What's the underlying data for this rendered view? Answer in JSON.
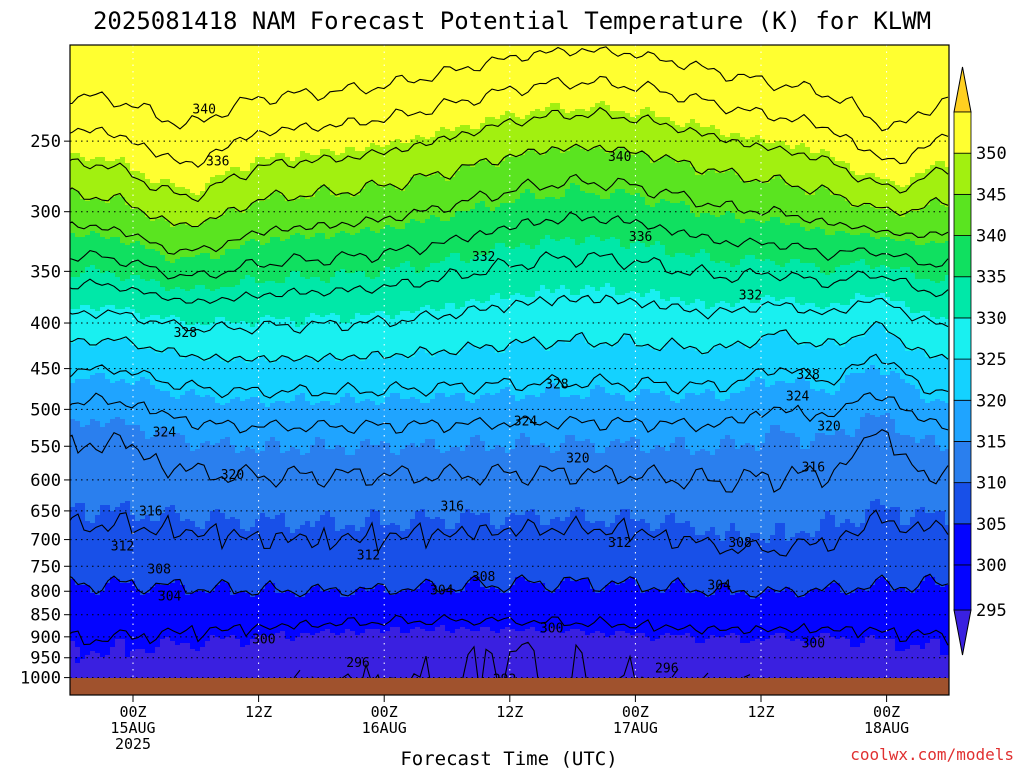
{
  "chart_data": {
    "type": "heatmap",
    "title": "2025081418 NAM Forecast Potential Temperature (K) for KLWM",
    "xlabel": "Forecast Time (UTC)",
    "ylabel": "",
    "y_scale": "log",
    "y_ticks": [
      250,
      300,
      350,
      400,
      450,
      500,
      550,
      600,
      650,
      700,
      750,
      800,
      850,
      900,
      950,
      1000
    ],
    "x_ticks": [
      {
        "hour": 0,
        "lines": [
          "00Z",
          "15AUG",
          "2025"
        ]
      },
      {
        "hour": 12,
        "lines": [
          "12Z"
        ]
      },
      {
        "hour": 24,
        "lines": [
          "00Z",
          "16AUG"
        ]
      },
      {
        "hour": 36,
        "lines": [
          "12Z"
        ]
      },
      {
        "hour": 48,
        "lines": [
          "00Z",
          "17AUG"
        ]
      },
      {
        "hour": 60,
        "lines": [
          "12Z"
        ]
      },
      {
        "hour": 72,
        "lines": [
          "00Z",
          "18AUG"
        ]
      }
    ],
    "colorbar": {
      "labels": [
        295,
        300,
        305,
        310,
        315,
        320,
        325,
        330,
        335,
        340,
        345,
        350
      ],
      "colors": [
        "#0404ff",
        "#1850e8",
        "#2a7fee",
        "#1fa4ff",
        "#14d2ff",
        "#19f0f0",
        "#00e8a8",
        "#10e060",
        "#5ae420",
        "#a2f010",
        "#ffff30"
      ]
    },
    "contour_labels": [
      {
        "text": "340",
        "x": 6.8,
        "y": 230
      },
      {
        "text": "336",
        "x": 8.1,
        "y": 263
      },
      {
        "text": "340",
        "x": 46.5,
        "y": 260
      },
      {
        "text": "336",
        "x": 48.5,
        "y": 320
      },
      {
        "text": "332",
        "x": 33.5,
        "y": 337
      },
      {
        "text": "332",
        "x": 59,
        "y": 372
      },
      {
        "text": "328",
        "x": 5,
        "y": 410
      },
      {
        "text": "328",
        "x": 40.5,
        "y": 468
      },
      {
        "text": "328",
        "x": 64.5,
        "y": 457
      },
      {
        "text": "324",
        "x": 3,
        "y": 530
      },
      {
        "text": "324",
        "x": 37.5,
        "y": 515
      },
      {
        "text": "324",
        "x": 63.5,
        "y": 483
      },
      {
        "text": "320",
        "x": 9.5,
        "y": 592
      },
      {
        "text": "320",
        "x": 42.5,
        "y": 567
      },
      {
        "text": "320",
        "x": 66.5,
        "y": 522
      },
      {
        "text": "316",
        "x": 1.7,
        "y": 650
      },
      {
        "text": "316",
        "x": 30.5,
        "y": 642
      },
      {
        "text": "316",
        "x": 65,
        "y": 580
      },
      {
        "text": "312",
        "x": -1,
        "y": 712
      },
      {
        "text": "312",
        "x": 22.5,
        "y": 728
      },
      {
        "text": "312",
        "x": 46.5,
        "y": 705
      },
      {
        "text": "308",
        "x": 2.5,
        "y": 755
      },
      {
        "text": "308",
        "x": 33.5,
        "y": 770
      },
      {
        "text": "308",
        "x": 58,
        "y": 705
      },
      {
        "text": "304",
        "x": 3.5,
        "y": 810
      },
      {
        "text": "304",
        "x": 29.5,
        "y": 797
      },
      {
        "text": "304",
        "x": 56,
        "y": 787
      },
      {
        "text": "300",
        "x": 12.5,
        "y": 905
      },
      {
        "text": "300",
        "x": 40,
        "y": 880
      },
      {
        "text": "300",
        "x": 65,
        "y": 915
      },
      {
        "text": "296",
        "x": 21.5,
        "y": 962
      },
      {
        "text": "296",
        "x": 51,
        "y": 975
      },
      {
        "text": "292",
        "x": 35.5,
        "y": 1003
      }
    ]
  },
  "watermark": "coolwx.com/models",
  "ground_color": "#a0522d"
}
